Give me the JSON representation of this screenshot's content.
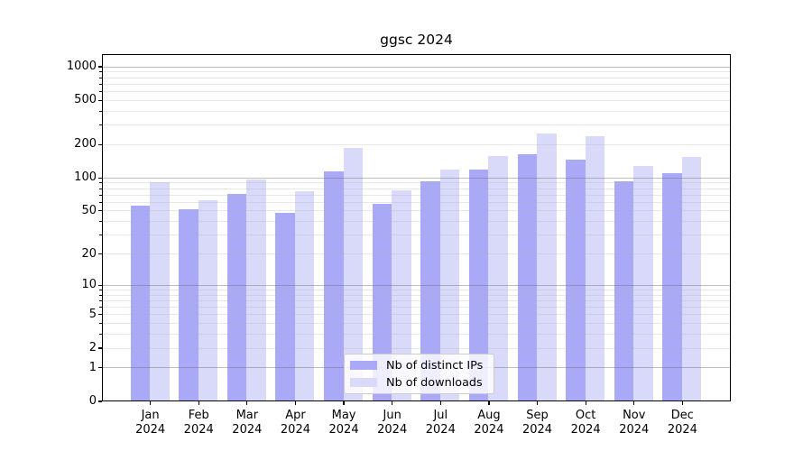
{
  "title": "ggsc 2024",
  "legend": {
    "items": [
      {
        "label": "Nb of distinct IPs",
        "color": "#a9a9f7"
      },
      {
        "label": "Nb of downloads",
        "color": "#d9d9f9"
      }
    ],
    "position": "lower center"
  },
  "colors": {
    "distinct_ips": "#a9a9f7",
    "downloads": "#d9d9f9",
    "grid_major": "#c3c3c3",
    "grid_minor": "#ececec",
    "axis": "#000000",
    "background": "#ffffff"
  },
  "chart_data": {
    "type": "bar",
    "title": "ggsc 2024",
    "categories": [
      "Jan 2024",
      "Feb 2024",
      "Mar 2024",
      "Apr 2024",
      "May 2024",
      "Jun 2024",
      "Jul 2024",
      "Aug 2024",
      "Sep 2024",
      "Oct 2024",
      "Nov 2024",
      "Dec 2024"
    ],
    "series": [
      {
        "name": "Nb of distinct IPs",
        "color": "#a9a9f7",
        "values": [
          56,
          52,
          72,
          48,
          115,
          58,
          94,
          119,
          165,
          146,
          93,
          110
        ]
      },
      {
        "name": "Nb of downloads",
        "color": "#d9d9f9",
        "values": [
          92,
          63,
          97,
          75,
          186,
          77,
          118,
          157,
          250,
          240,
          129,
          154
        ]
      }
    ],
    "xlabel": "",
    "ylabel": "",
    "yscale": "log1p",
    "ylim": [
      0,
      1300
    ],
    "yticks": [
      0,
      1,
      2,
      5,
      10,
      20,
      50,
      100,
      200,
      500,
      1000
    ],
    "yticks_minor": [
      2,
      3,
      4,
      5,
      6,
      7,
      8,
      9,
      20,
      30,
      40,
      50,
      60,
      70,
      80,
      90,
      200,
      300,
      400,
      500,
      600,
      700,
      800,
      900
    ],
    "grid": true,
    "grid_above_bars": true,
    "legend_position": "lower center"
  }
}
